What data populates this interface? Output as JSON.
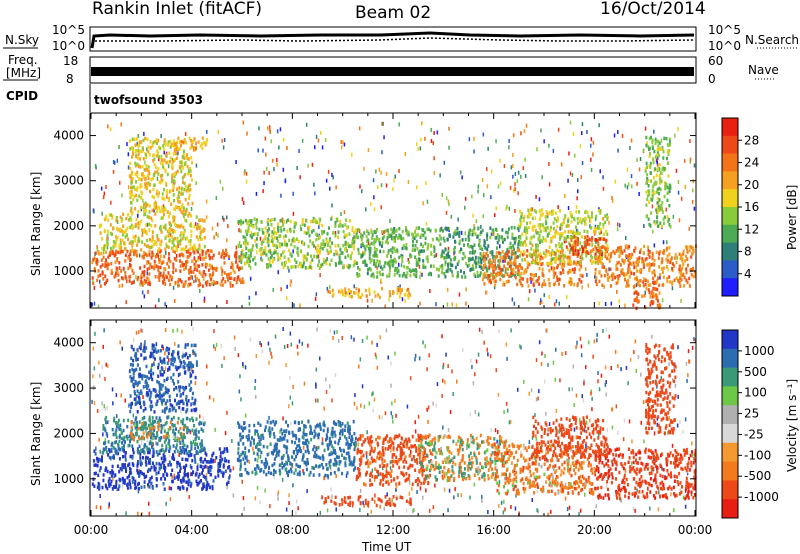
{
  "header": {
    "station": "Rankin Inlet (fitACF)",
    "beam": "Beam 02",
    "date": "16/Oct/2014"
  },
  "nsky_panel": {
    "left_label": "N.Sky",
    "right_label": "N.Search",
    "left_ticks": [
      "10^5",
      "10^0"
    ],
    "right_ticks": [
      "10^5",
      "10^0"
    ]
  },
  "freq_panel": {
    "left_label_1": "Freq.",
    "left_label_2": "[MHz]",
    "right_label": "Nave",
    "left_ticks": [
      "18",
      "8"
    ],
    "right_ticks": [
      "60",
      "0"
    ]
  },
  "cpid": {
    "label": "CPID",
    "value": "twofsound 3503"
  },
  "colors": {
    "power_scale": [
      "#1e1eff",
      "#2b5cc8",
      "#2e7f77",
      "#4caa55",
      "#8acb3c",
      "#f0d21e",
      "#f5a020",
      "#f27318",
      "#ee4818",
      "#ea2012"
    ],
    "velocity_scale": [
      "#2236c8",
      "#2c6cb0",
      "#3a9a78",
      "#6ec848",
      "#b0b0b0",
      "#d8d8d8",
      "#f59a30",
      "#f47a1e",
      "#ee4818",
      "#e81e12"
    ]
  },
  "chart_data": [
    {
      "type": "heatmap",
      "title": "Power",
      "ylabel": "Slant Range [km]",
      "colorbar_label": "Power [dB]",
      "colorbar_ticks": [
        "28",
        "24",
        "20",
        "16",
        "12",
        "8",
        "4"
      ],
      "xlim": [
        0,
        24
      ],
      "ylim": [
        180,
        4500
      ],
      "y_ticks": [
        "4000",
        "3000",
        "2000",
        "1000"
      ],
      "y_tick_values": [
        4000,
        3000,
        2000,
        1000
      ],
      "regions": [
        {
          "t0": 0.0,
          "t1": 6.0,
          "r0": 700,
          "r1": 1500,
          "value": 26
        },
        {
          "t0": 0.3,
          "t1": 4.5,
          "r0": 1500,
          "r1": 2300,
          "value": 18
        },
        {
          "t0": 1.5,
          "t1": 4.0,
          "r0": 2300,
          "r1": 4000,
          "value": 18
        },
        {
          "t0": 3.2,
          "t1": 4.6,
          "r0": 3700,
          "r1": 4000,
          "value": 20
        },
        {
          "t0": 5.8,
          "t1": 10.5,
          "r0": 1100,
          "r1": 2200,
          "value": 14
        },
        {
          "t0": 10.5,
          "t1": 14.0,
          "r0": 900,
          "r1": 2000,
          "value": 12
        },
        {
          "t0": 9.2,
          "t1": 12.7,
          "r0": 450,
          "r1": 650,
          "value": 20
        },
        {
          "t0": 14.0,
          "t1": 17.0,
          "r0": 900,
          "r1": 2000,
          "value": 10
        },
        {
          "t0": 15.5,
          "t1": 19.5,
          "r0": 700,
          "r1": 1500,
          "value": 24
        },
        {
          "t0": 17.0,
          "t1": 20.5,
          "r0": 1200,
          "r1": 2400,
          "value": 16
        },
        {
          "t0": 18.8,
          "t1": 20.5,
          "r0": 1400,
          "r1": 1800,
          "value": 28
        },
        {
          "t0": 20.0,
          "t1": 24.0,
          "r0": 700,
          "r1": 1600,
          "value": 24
        },
        {
          "t0": 21.5,
          "t1": 22.6,
          "r0": 200,
          "r1": 700,
          "value": 26
        },
        {
          "t0": 22.0,
          "t1": 23.0,
          "r0": 2000,
          "r1": 4000,
          "value": 14
        }
      ]
    },
    {
      "type": "heatmap",
      "title": "Velocity",
      "ylabel": "Slant Range [km]",
      "xlabel": "Time UT",
      "colorbar_label": "Velocity [m s⁻¹]",
      "colorbar_ticks": [
        "1000",
        "500",
        "100",
        "25",
        "-25",
        "-100",
        "-500",
        "-1000"
      ],
      "xlim": [
        0,
        24
      ],
      "ylim": [
        180,
        4500
      ],
      "x_ticks": [
        "00:00",
        "04:00",
        "08:00",
        "12:00",
        "16:00",
        "20:00",
        "00:00"
      ],
      "x_tick_values": [
        0,
        4,
        8,
        12,
        16,
        20,
        24
      ],
      "y_ticks": [
        "4000",
        "3000",
        "2000",
        "1000"
      ],
      "y_tick_values": [
        4000,
        3000,
        2000,
        1000
      ],
      "regions": [
        {
          "t0": 0.0,
          "t1": 5.5,
          "r0": 800,
          "r1": 1700,
          "value": 700
        },
        {
          "t0": 0.4,
          "t1": 4.5,
          "r0": 1600,
          "r1": 2400,
          "value": 100
        },
        {
          "t0": 1.5,
          "t1": 3.8,
          "r0": 1900,
          "r1": 2300,
          "value": 0
        },
        {
          "t0": 1.5,
          "t1": 4.2,
          "r0": 2500,
          "r1": 4000,
          "value": 400
        },
        {
          "t0": 5.8,
          "t1": 10.5,
          "r0": 1100,
          "r1": 2300,
          "value": 150
        },
        {
          "t0": 9.2,
          "t1": 12.7,
          "r0": 450,
          "r1": 650,
          "value": -200
        },
        {
          "t0": 10.5,
          "t1": 13.5,
          "r0": 900,
          "r1": 2000,
          "value": -150
        },
        {
          "t0": 13.0,
          "t1": 16.5,
          "r0": 1000,
          "r1": 2000,
          "value": 0
        },
        {
          "t0": 16.0,
          "t1": 20.0,
          "r0": 700,
          "r1": 1800,
          "value": -60
        },
        {
          "t0": 17.5,
          "t1": 20.5,
          "r0": 1500,
          "r1": 2400,
          "value": -300
        },
        {
          "t0": 20.0,
          "t1": 24.0,
          "r0": 600,
          "r1": 1700,
          "value": -400
        },
        {
          "t0": 22.0,
          "t1": 23.2,
          "r0": 2000,
          "r1": 4000,
          "value": -250
        }
      ]
    }
  ]
}
